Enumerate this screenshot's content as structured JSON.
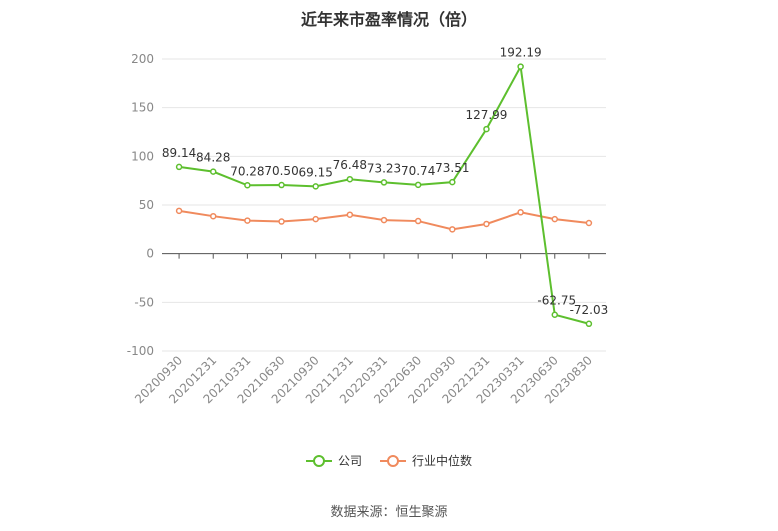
{
  "title": "近年来市盈率情况（倍）",
  "source": "数据来源：恒生聚源",
  "chart_data": {
    "type": "line",
    "categories": [
      "20200930",
      "20201231",
      "20210331",
      "20210630",
      "20210930",
      "20211231",
      "20220331",
      "20220630",
      "20220930",
      "20221231",
      "20230331",
      "20230630",
      "20230830"
    ],
    "series": [
      {
        "name": "公司",
        "color": "#5dbf2e",
        "values": [
          89.14,
          84.28,
          70.28,
          70.5,
          69.15,
          76.48,
          73.23,
          70.74,
          73.51,
          127.99,
          192.19,
          -62.75,
          -72.03
        ],
        "labels": [
          "89.14",
          "84.28",
          "70.28",
          "70.50",
          "69.15",
          "76.48",
          "73.23",
          "70.74",
          "73.51",
          "127.99",
          "192.19",
          "-62.75",
          "-72.03"
        ]
      },
      {
        "name": "行业中位数",
        "color": "#f08a5d",
        "values": [
          44,
          38.5,
          34,
          33,
          35.5,
          40,
          34.5,
          33.5,
          25,
          30.5,
          42.5,
          35.5,
          31.5
        ]
      }
    ],
    "yticks": [
      200,
      150,
      100,
      50,
      0,
      -50,
      -100
    ],
    "ylim": [
      -100,
      200
    ],
    "grid": true,
    "legend_position": "bottom"
  }
}
